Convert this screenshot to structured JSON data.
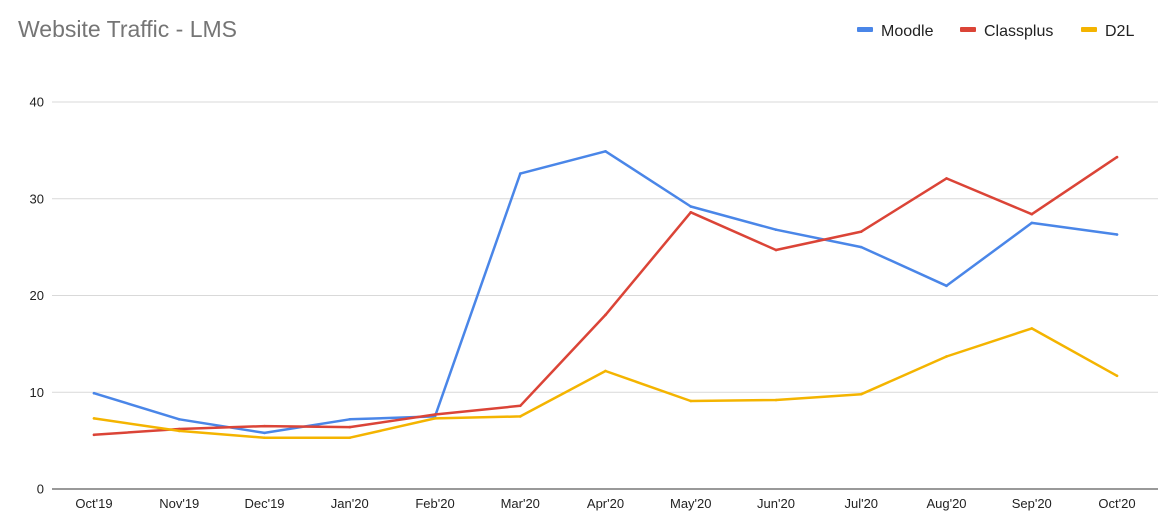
{
  "chart_data": {
    "type": "line",
    "title": "Website Traffic - LMS",
    "xlabel": "",
    "ylabel": "",
    "categories": [
      "Oct'19",
      "Nov'19",
      "Dec'19",
      "Jan'20",
      "Feb'20",
      "Mar'20",
      "Apr'20",
      "May'20",
      "Jun'20",
      "Jul'20",
      "Aug'20",
      "Sep'20",
      "Oct'20"
    ],
    "ylim": [
      0,
      40
    ],
    "yticks": [
      "0",
      "10",
      "20",
      "30",
      "40"
    ],
    "grid": true,
    "legend_position": "top-right",
    "series": [
      {
        "name": "Moodle",
        "color": "#4a86e8",
        "values": [
          9.9,
          7.2,
          5.8,
          7.2,
          7.5,
          32.6,
          34.9,
          29.2,
          26.8,
          25.0,
          21.0,
          27.5,
          26.3
        ]
      },
      {
        "name": "Classplus",
        "color": "#db4437",
        "values": [
          5.6,
          6.2,
          6.5,
          6.4,
          7.7,
          8.6,
          18.0,
          28.6,
          24.7,
          26.6,
          32.1,
          28.4,
          34.3
        ]
      },
      {
        "name": "D2L",
        "color": "#f4b400",
        "values": [
          7.3,
          6.0,
          5.3,
          5.3,
          7.3,
          7.5,
          12.2,
          9.1,
          9.2,
          9.8,
          13.7,
          16.6,
          11.7
        ]
      }
    ]
  }
}
